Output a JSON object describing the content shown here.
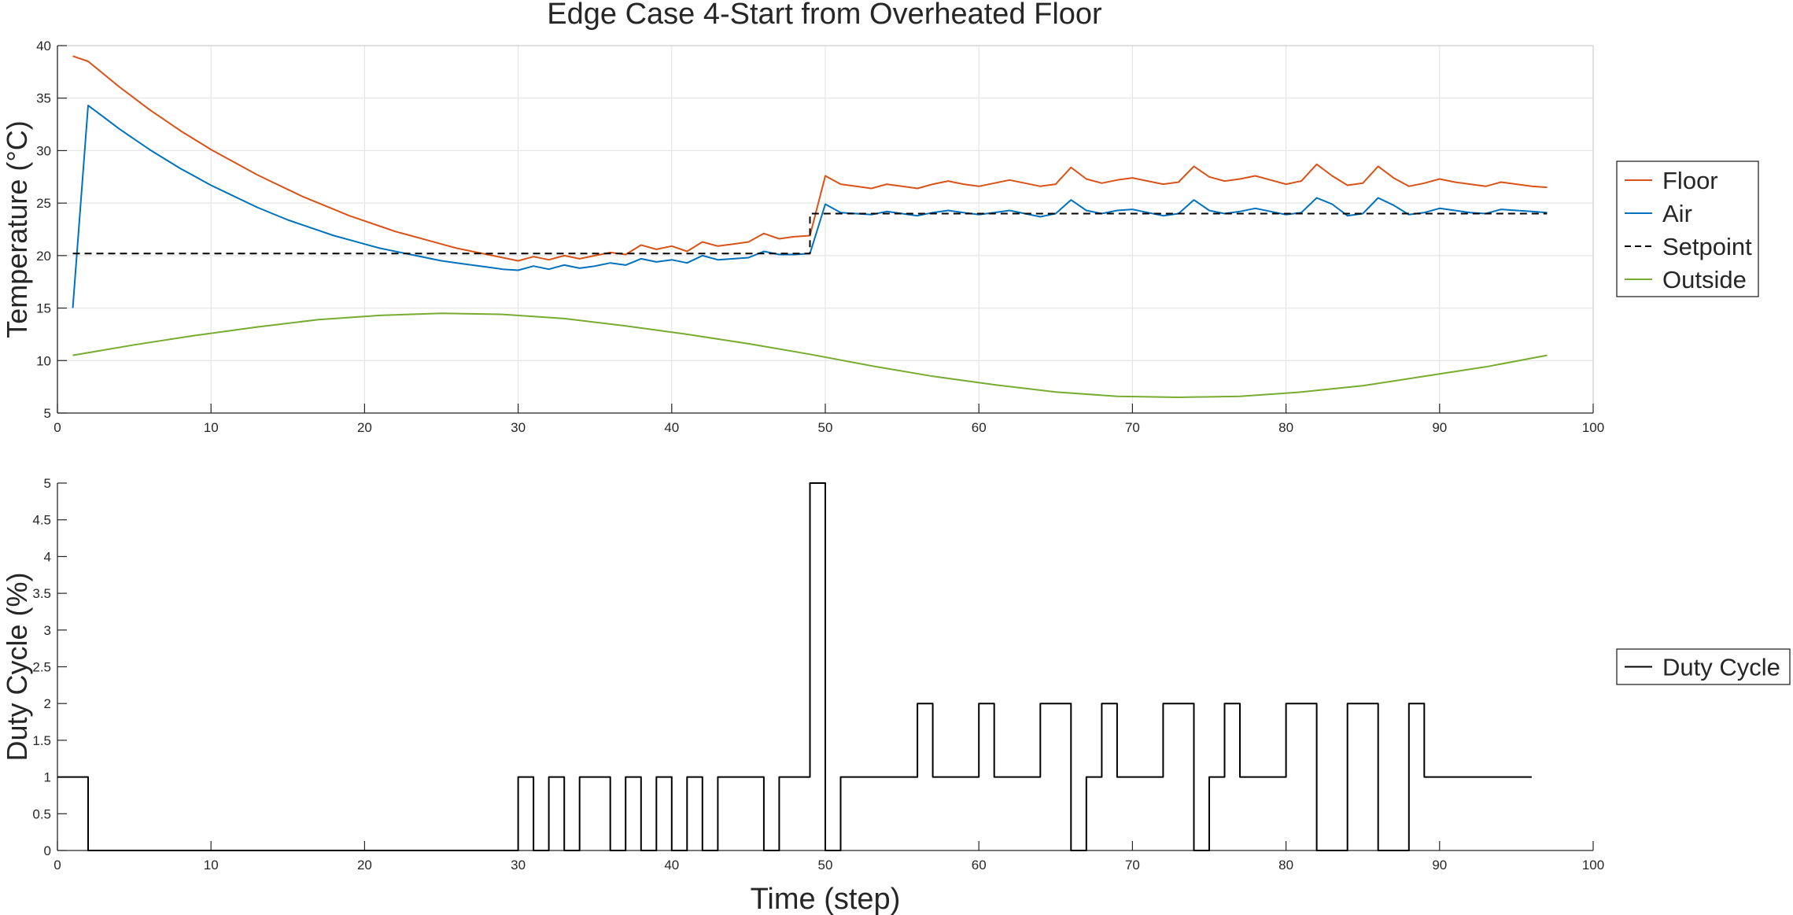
{
  "figure": {
    "title": "Edge Case 4-Start from Overheated Floor"
  },
  "colors": {
    "floor": "#D95319",
    "air": "#0072BD",
    "setpoint": "#000000",
    "outside": "#77AC30",
    "duty": "#000000",
    "grid": "#e6e6e6",
    "axis": "#262626"
  },
  "chart_data": [
    {
      "type": "line",
      "title": "Edge Case 4-Start from Overheated Floor",
      "xlabel": "",
      "ylabel": "Temperature (°C)",
      "xlim": [
        0,
        100
      ],
      "ylim": [
        5,
        40
      ],
      "xticks": [
        0,
        10,
        20,
        30,
        40,
        50,
        60,
        70,
        80,
        90,
        100
      ],
      "yticks": [
        5,
        10,
        15,
        20,
        25,
        30,
        35,
        40
      ],
      "grid": true,
      "legend_position": "outside-right",
      "series": [
        {
          "name": "Floor",
          "color_key": "floor",
          "x": [
            1,
            2,
            3,
            4,
            5,
            6,
            7,
            8,
            9,
            10,
            11,
            12,
            13,
            14,
            15,
            16,
            17,
            18,
            19,
            20,
            21,
            22,
            23,
            24,
            25,
            26,
            27,
            28,
            29,
            30,
            31,
            32,
            33,
            34,
            35,
            36,
            37,
            38,
            39,
            40,
            41,
            42,
            43,
            44,
            45,
            46,
            47,
            48,
            49,
            50,
            51,
            52,
            53,
            54,
            55,
            56,
            57,
            58,
            59,
            60,
            61,
            62,
            63,
            64,
            65,
            66,
            67,
            68,
            69,
            70,
            71,
            72,
            73,
            74,
            75,
            76,
            77,
            78,
            79,
            80,
            81,
            82,
            83,
            84,
            85,
            86,
            87,
            88,
            89,
            90,
            91,
            92,
            93,
            94,
            95,
            96,
            97
          ],
          "y": [
            39,
            38.5,
            37.3,
            36.1,
            35,
            33.9,
            32.9,
            31.9,
            31,
            30.1,
            29.3,
            28.5,
            27.7,
            27,
            26.3,
            25.6,
            25,
            24.4,
            23.8,
            23.3,
            22.8,
            22.3,
            21.9,
            21.5,
            21.1,
            20.7,
            20.4,
            20.1,
            19.8,
            19.5,
            19.9,
            19.6,
            20,
            19.7,
            20,
            20.3,
            20.1,
            21,
            20.6,
            20.9,
            20.4,
            21.3,
            20.9,
            21.1,
            21.3,
            22.1,
            21.6,
            21.8,
            21.9,
            27.6,
            26.8,
            26.6,
            26.4,
            26.8,
            26.6,
            26.4,
            26.8,
            27.1,
            26.8,
            26.6,
            26.9,
            27.2,
            26.9,
            26.6,
            26.8,
            28.4,
            27.3,
            26.9,
            27.2,
            27.4,
            27.1,
            26.8,
            27,
            28.5,
            27.5,
            27.1,
            27.3,
            27.6,
            27.2,
            26.8,
            27.1,
            28.7,
            27.6,
            26.7,
            26.9,
            28.5,
            27.4,
            26.6,
            26.9,
            27.3,
            27,
            26.8,
            26.6,
            27,
            26.8,
            26.6,
            26.5
          ]
        },
        {
          "name": "Air",
          "color_key": "air",
          "x": [
            1,
            2,
            3,
            4,
            5,
            6,
            7,
            8,
            9,
            10,
            11,
            12,
            13,
            14,
            15,
            16,
            17,
            18,
            19,
            20,
            21,
            22,
            23,
            24,
            25,
            26,
            27,
            28,
            29,
            30,
            31,
            32,
            33,
            34,
            35,
            36,
            37,
            38,
            39,
            40,
            41,
            42,
            43,
            44,
            45,
            46,
            47,
            48,
            49,
            50,
            51,
            52,
            53,
            54,
            55,
            56,
            57,
            58,
            59,
            60,
            61,
            62,
            63,
            64,
            65,
            66,
            67,
            68,
            69,
            70,
            71,
            72,
            73,
            74,
            75,
            76,
            77,
            78,
            79,
            80,
            81,
            82,
            83,
            84,
            85,
            86,
            87,
            88,
            89,
            90,
            91,
            92,
            93,
            94,
            95,
            96,
            97
          ],
          "y": [
            15,
            34.3,
            33.2,
            32.1,
            31.1,
            30.1,
            29.2,
            28.3,
            27.5,
            26.7,
            26,
            25.3,
            24.6,
            24,
            23.4,
            22.9,
            22.4,
            21.9,
            21.5,
            21.1,
            20.7,
            20.4,
            20.1,
            19.8,
            19.5,
            19.3,
            19.1,
            18.9,
            18.7,
            18.6,
            19,
            18.7,
            19.1,
            18.8,
            19,
            19.3,
            19.1,
            19.7,
            19.4,
            19.6,
            19.3,
            20,
            19.6,
            19.7,
            19.8,
            20.4,
            20.1,
            20.1,
            20.2,
            24.9,
            24.1,
            24,
            23.9,
            24.2,
            24,
            23.8,
            24.1,
            24.3,
            24.1,
            23.9,
            24.1,
            24.3,
            24,
            23.7,
            24,
            25.3,
            24.3,
            24,
            24.3,
            24.4,
            24.1,
            23.8,
            24,
            25.3,
            24.3,
            24,
            24.2,
            24.5,
            24.2,
            23.9,
            24.1,
            25.5,
            24.9,
            23.8,
            24,
            25.5,
            24.8,
            23.9,
            24.1,
            24.5,
            24.3,
            24.1,
            24,
            24.4,
            24.3,
            24.2,
            24.1
          ]
        },
        {
          "name": "Setpoint",
          "color_key": "setpoint",
          "dashed": true,
          "x": [
            1,
            49,
            49,
            97
          ],
          "y": [
            20.2,
            20.2,
            24,
            24
          ]
        },
        {
          "name": "Outside",
          "color_key": "outside",
          "x": [
            1,
            5,
            9,
            13,
            17,
            21,
            25,
            29,
            33,
            37,
            41,
            45,
            49,
            53,
            57,
            61,
            65,
            69,
            73,
            77,
            81,
            85,
            89,
            93,
            97
          ],
          "y": [
            10.5,
            11.5,
            12.4,
            13.2,
            13.9,
            14.3,
            14.5,
            14.4,
            14,
            13.3,
            12.5,
            11.6,
            10.6,
            9.5,
            8.5,
            7.7,
            7.0,
            6.6,
            6.5,
            6.6,
            7.0,
            7.6,
            8.5,
            9.4,
            10.5
          ]
        }
      ]
    },
    {
      "type": "line",
      "title": "",
      "xlabel": "Time (step)",
      "ylabel": "Duty Cycle (%)",
      "xlim": [
        0,
        100
      ],
      "ylim": [
        0,
        5
      ],
      "xticks": [
        0,
        10,
        20,
        30,
        40,
        50,
        60,
        70,
        80,
        90,
        100
      ],
      "yticks": [
        0,
        0.5,
        1,
        1.5,
        2,
        2.5,
        3,
        3.5,
        4,
        4.5,
        5
      ],
      "grid": false,
      "legend_position": "outside-right",
      "series": [
        {
          "name": "Duty Cycle",
          "color_key": "duty",
          "step": true,
          "x": [
            0,
            2,
            2,
            30,
            30,
            31,
            31,
            32,
            32,
            33,
            33,
            34,
            34,
            36,
            36,
            37,
            37,
            38,
            38,
            39,
            39,
            40,
            40,
            41,
            41,
            42,
            42,
            43,
            43,
            46,
            46,
            47,
            47,
            49,
            49,
            50,
            50,
            51,
            51,
            56,
            56,
            57,
            57,
            60,
            60,
            61,
            61,
            64,
            64,
            66,
            66,
            67,
            67,
            68,
            68,
            69,
            69,
            72,
            72,
            74,
            74,
            75,
            75,
            76,
            76,
            77,
            77,
            80,
            80,
            82,
            82,
            84,
            84,
            86,
            86,
            88,
            88,
            89,
            89,
            96
          ],
          "y": [
            1,
            1,
            0,
            0,
            1,
            1,
            0,
            0,
            1,
            1,
            0,
            0,
            1,
            1,
            0,
            0,
            1,
            1,
            0,
            0,
            1,
            1,
            0,
            0,
            1,
            1,
            0,
            0,
            1,
            1,
            0,
            0,
            1,
            1,
            5,
            5,
            0,
            0,
            1,
            1,
            2,
            2,
            1,
            1,
            2,
            2,
            1,
            1,
            2,
            2,
            0,
            0,
            1,
            1,
            2,
            2,
            1,
            1,
            2,
            2,
            0,
            0,
            1,
            1,
            2,
            2,
            1,
            1,
            2,
            2,
            0,
            0,
            2,
            2,
            0,
            0,
            2,
            2,
            1,
            1
          ]
        }
      ]
    }
  ]
}
